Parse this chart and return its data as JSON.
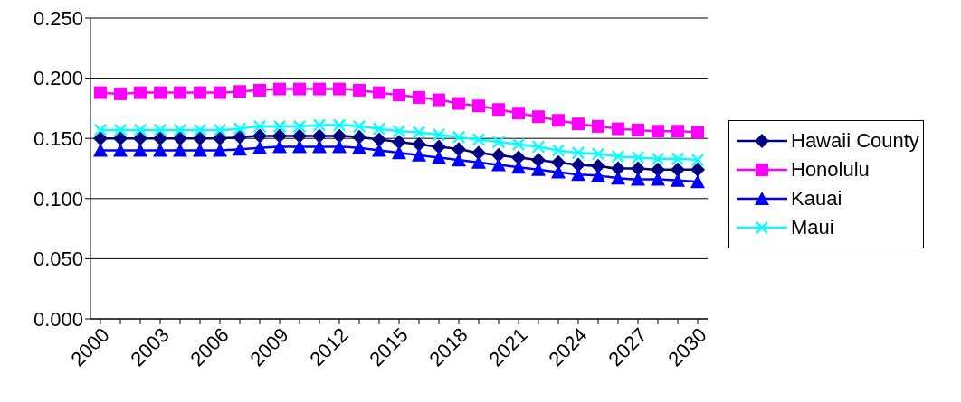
{
  "chart_data": {
    "type": "line",
    "categories": [
      "2000",
      null,
      null,
      "2003",
      null,
      null,
      "2006",
      null,
      null,
      "2009",
      null,
      null,
      "2012",
      null,
      null,
      "2015",
      null,
      null,
      "2018",
      null,
      null,
      "2021",
      null,
      null,
      "2024",
      null,
      null,
      "2027",
      null,
      null,
      "2030"
    ],
    "series": [
      {
        "name": "Hawaii County",
        "color": "#000080",
        "marker": "diamond",
        "values": [
          0.15,
          0.15,
          0.15,
          0.15,
          0.15,
          0.15,
          0.15,
          0.151,
          0.152,
          0.152,
          0.152,
          0.152,
          0.152,
          0.151,
          0.149,
          0.147,
          0.145,
          0.143,
          0.141,
          0.138,
          0.136,
          0.134,
          0.132,
          0.13,
          0.128,
          0.127,
          0.125,
          0.125,
          0.124,
          0.124,
          0.124
        ]
      },
      {
        "name": "Honolulu",
        "color": "#ff00ff",
        "marker": "square",
        "values": [
          0.188,
          0.187,
          0.188,
          0.188,
          0.188,
          0.188,
          0.188,
          0.189,
          0.19,
          0.191,
          0.191,
          0.191,
          0.191,
          0.19,
          0.188,
          0.186,
          0.184,
          0.182,
          0.179,
          0.177,
          0.174,
          0.171,
          0.168,
          0.165,
          0.162,
          0.16,
          0.158,
          0.157,
          0.156,
          0.156,
          0.155
        ]
      },
      {
        "name": "Kauai",
        "color": "#0000ff",
        "marker": "triangle",
        "values": [
          0.14,
          0.14,
          0.14,
          0.14,
          0.14,
          0.14,
          0.14,
          0.141,
          0.142,
          0.143,
          0.143,
          0.143,
          0.143,
          0.142,
          0.14,
          0.138,
          0.136,
          0.134,
          0.132,
          0.13,
          0.128,
          0.126,
          0.124,
          0.122,
          0.12,
          0.119,
          0.117,
          0.116,
          0.116,
          0.115,
          0.114
        ]
      },
      {
        "name": "Maui",
        "color": "#00ffff",
        "marker": "cross",
        "values": [
          0.157,
          0.157,
          0.157,
          0.157,
          0.157,
          0.157,
          0.157,
          0.158,
          0.16,
          0.16,
          0.16,
          0.161,
          0.161,
          0.16,
          0.158,
          0.156,
          0.155,
          0.153,
          0.151,
          0.149,
          0.147,
          0.145,
          0.143,
          0.14,
          0.138,
          0.137,
          0.135,
          0.134,
          0.133,
          0.133,
          0.132
        ]
      }
    ],
    "ylim": [
      0,
      0.25
    ],
    "yticks": [
      {
        "value": 0,
        "label": "0.000"
      },
      {
        "value": 0.05,
        "label": "0.050"
      },
      {
        "value": 0.1,
        "label": "0.100"
      },
      {
        "value": 0.15,
        "label": "0.150"
      },
      {
        "value": 0.2,
        "label": "0.200"
      },
      {
        "value": 0.25,
        "label": "0.250"
      }
    ],
    "grid": "y",
    "legend": "right",
    "line_style": "solid"
  }
}
